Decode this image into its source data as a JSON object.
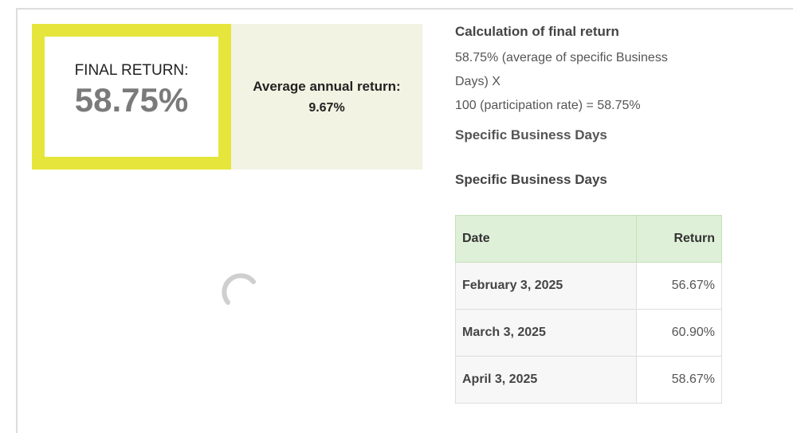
{
  "final": {
    "label": "FINAL RETURN:",
    "value": "58.75%"
  },
  "average": {
    "label": "Average annual return:",
    "value": "9.67%"
  },
  "calculation": {
    "title": "Calculation of final return",
    "line1": "58.75% (average of specific Business Days) X",
    "line2": "100 (participation rate) = 58.75%",
    "link": "Specific Business Days"
  },
  "table": {
    "title": "Specific Business Days",
    "headers": [
      "Date",
      "Return"
    ],
    "rows": [
      [
        "February 3, 2025",
        "56.67%"
      ],
      [
        "March 3, 2025",
        "60.90%"
      ],
      [
        "April 3, 2025",
        "58.67%"
      ]
    ]
  }
}
